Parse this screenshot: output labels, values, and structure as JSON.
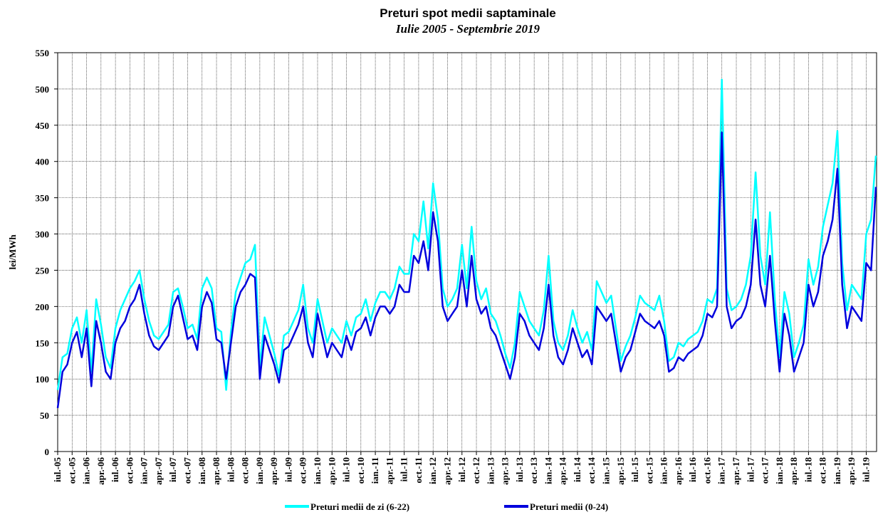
{
  "chart_data": {
    "type": "line",
    "title": "Preturi spot medii saptaminale",
    "subtitle": "Iulie 2005 - Septembrie 2019",
    "y_label": "lei/MWh",
    "categories": [
      "iul.-05",
      null,
      null,
      "oct.-05",
      null,
      null,
      "ian.-06",
      null,
      null,
      "apr.-06",
      null,
      null,
      "iul.-06",
      null,
      null,
      "oct.-06",
      null,
      null,
      "ian.-07",
      null,
      null,
      "apr.-07",
      null,
      null,
      "iul.-07",
      null,
      null,
      "oct.-07",
      null,
      null,
      "ian.-08",
      null,
      null,
      "apr.-08",
      null,
      null,
      "iul.-08",
      null,
      null,
      "oct.-08",
      null,
      null,
      "ian.-09",
      null,
      null,
      "apr.-09",
      null,
      null,
      "iul.-09",
      null,
      null,
      "oct.-09",
      null,
      null,
      "ian.-10",
      null,
      null,
      "apr.-10",
      null,
      null,
      "iul.-10",
      null,
      null,
      "oct.-10",
      null,
      null,
      "ian.-11",
      null,
      null,
      "apr.-11",
      null,
      null,
      "iul.-11",
      null,
      null,
      "oct.-11",
      null,
      null,
      "ian.-12",
      null,
      null,
      "apr.-12",
      null,
      null,
      "iul.-12",
      null,
      null,
      "oct.-12",
      null,
      null,
      "ian.-13",
      null,
      null,
      "apr.-13",
      null,
      null,
      "iul.-13",
      null,
      null,
      "oct.-13",
      null,
      null,
      "ian.-14",
      null,
      null,
      "apr.-14",
      null,
      null,
      "iul.-14",
      null,
      null,
      "oct.-14",
      null,
      null,
      "ian.-15",
      null,
      null,
      "apr.-15",
      null,
      null,
      "iul.-15",
      null,
      null,
      "oct.-15",
      null,
      null,
      "ian.-16",
      null,
      null,
      "apr.-16",
      null,
      null,
      "iul.-16",
      null,
      null,
      "oct.-16",
      null,
      null,
      "ian.-17",
      null,
      null,
      "apr.-17",
      null,
      null,
      "iul.-17",
      null,
      null,
      "oct.-17",
      null,
      null,
      "ian.-18",
      null,
      null,
      "apr.-18",
      null,
      null,
      "iul.-18",
      null,
      null,
      "oct.-18",
      null,
      null,
      "ian.-19",
      null,
      null,
      "apr.-19",
      null,
      null,
      "iul.-19",
      null,
      null
    ],
    "series": [
      {
        "name": "Preturi medii de zi (6-22)",
        "color": "#00ffff",
        "values": [
          85,
          130,
          135,
          170,
          185,
          150,
          195,
          110,
          210,
          175,
          130,
          115,
          170,
          195,
          210,
          225,
          235,
          250,
          210,
          180,
          160,
          155,
          165,
          175,
          220,
          225,
          200,
          170,
          175,
          155,
          225,
          240,
          225,
          170,
          165,
          85,
          165,
          220,
          240,
          260,
          265,
          285,
          115,
          185,
          160,
          135,
          105,
          160,
          165,
          180,
          195,
          230,
          170,
          150,
          210,
          180,
          150,
          170,
          160,
          150,
          180,
          160,
          185,
          190,
          210,
          180,
          205,
          220,
          220,
          210,
          225,
          255,
          245,
          245,
          300,
          290,
          345,
          280,
          370,
          320,
          225,
          200,
          210,
          225,
          285,
          225,
          310,
          235,
          210,
          225,
          190,
          180,
          160,
          135,
          115,
          150,
          220,
          200,
          180,
          170,
          160,
          195,
          270,
          180,
          150,
          140,
          160,
          195,
          170,
          150,
          165,
          140,
          235,
          220,
          205,
          215,
          170,
          125,
          145,
          160,
          185,
          215,
          205,
          200,
          195,
          215,
          180,
          125,
          130,
          150,
          145,
          155,
          160,
          165,
          180,
          210,
          205,
          225,
          513,
          225,
          195,
          200,
          210,
          230,
          270,
          385,
          270,
          230,
          330,
          210,
          130,
          220,
          190,
          130,
          150,
          175,
          265,
          230,
          255,
          310,
          340,
          370,
          442,
          260,
          195,
          230,
          220,
          210,
          300,
          320,
          408
        ]
      },
      {
        "name": "Preturi medii (0-24)",
        "color": "#0000dd",
        "values": [
          60,
          110,
          120,
          150,
          165,
          130,
          170,
          90,
          180,
          150,
          110,
          100,
          150,
          170,
          180,
          200,
          210,
          230,
          190,
          160,
          145,
          140,
          150,
          160,
          200,
          215,
          185,
          155,
          160,
          140,
          200,
          220,
          205,
          155,
          150,
          100,
          150,
          200,
          220,
          230,
          245,
          240,
          100,
          160,
          140,
          120,
          95,
          140,
          145,
          160,
          175,
          200,
          150,
          130,
          190,
          160,
          130,
          150,
          140,
          130,
          160,
          140,
          165,
          170,
          185,
          160,
          185,
          200,
          200,
          190,
          200,
          230,
          220,
          220,
          270,
          260,
          290,
          250,
          330,
          290,
          200,
          180,
          190,
          200,
          250,
          200,
          270,
          210,
          190,
          200,
          170,
          160,
          140,
          120,
          100,
          130,
          190,
          180,
          160,
          150,
          140,
          170,
          230,
          160,
          130,
          120,
          140,
          170,
          150,
          130,
          140,
          120,
          200,
          190,
          180,
          190,
          150,
          110,
          130,
          140,
          165,
          190,
          180,
          175,
          170,
          180,
          160,
          110,
          115,
          130,
          125,
          135,
          140,
          145,
          160,
          190,
          185,
          200,
          440,
          200,
          170,
          180,
          185,
          200,
          230,
          320,
          230,
          200,
          270,
          180,
          110,
          190,
          160,
          110,
          130,
          150,
          230,
          200,
          220,
          270,
          290,
          320,
          390,
          230,
          170,
          200,
          190,
          180,
          260,
          250,
          365
        ]
      }
    ],
    "ylim": [
      0,
      550
    ],
    "yticks": [
      0,
      50,
      100,
      150,
      200,
      250,
      300,
      350,
      400,
      450,
      500,
      550
    ],
    "grid": true
  }
}
